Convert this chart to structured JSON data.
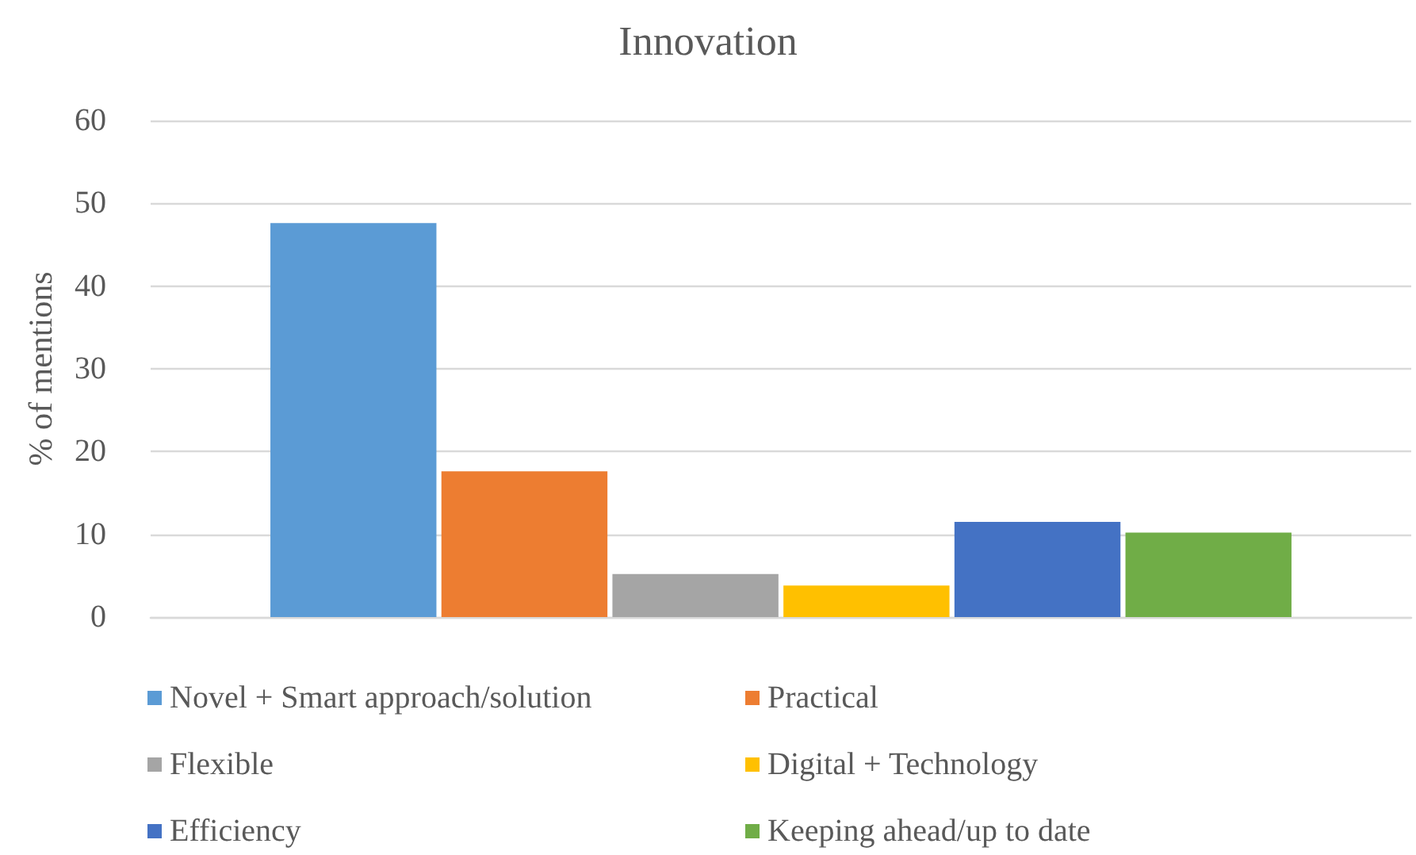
{
  "chart_data": {
    "type": "bar",
    "title": "Innovation",
    "ylabel": "% of mentions",
    "categories": [
      null
    ],
    "series": [
      {
        "name": "Novel + Smart approach/solution",
        "color": "#5b9bd5",
        "values": [
          47.6
        ]
      },
      {
        "name": "Practical",
        "color": "#ed7d31",
        "values": [
          17.6
        ]
      },
      {
        "name": "Flexible",
        "color": "#a5a5a5",
        "values": [
          5.2
        ]
      },
      {
        "name": "Digital + Technology",
        "color": "#ffc000",
        "values": [
          3.8
        ]
      },
      {
        "name": "Efficiency",
        "color": "#4472c4",
        "values": [
          11.5
        ]
      },
      {
        "name": "Keeping ahead/up to date",
        "color": "#70ad47",
        "values": [
          10.2
        ]
      }
    ],
    "ylim": [
      0,
      60
    ],
    "yticks": [
      0,
      10,
      20,
      30,
      40,
      50,
      60
    ],
    "grid": "y",
    "legend": "bottom"
  }
}
